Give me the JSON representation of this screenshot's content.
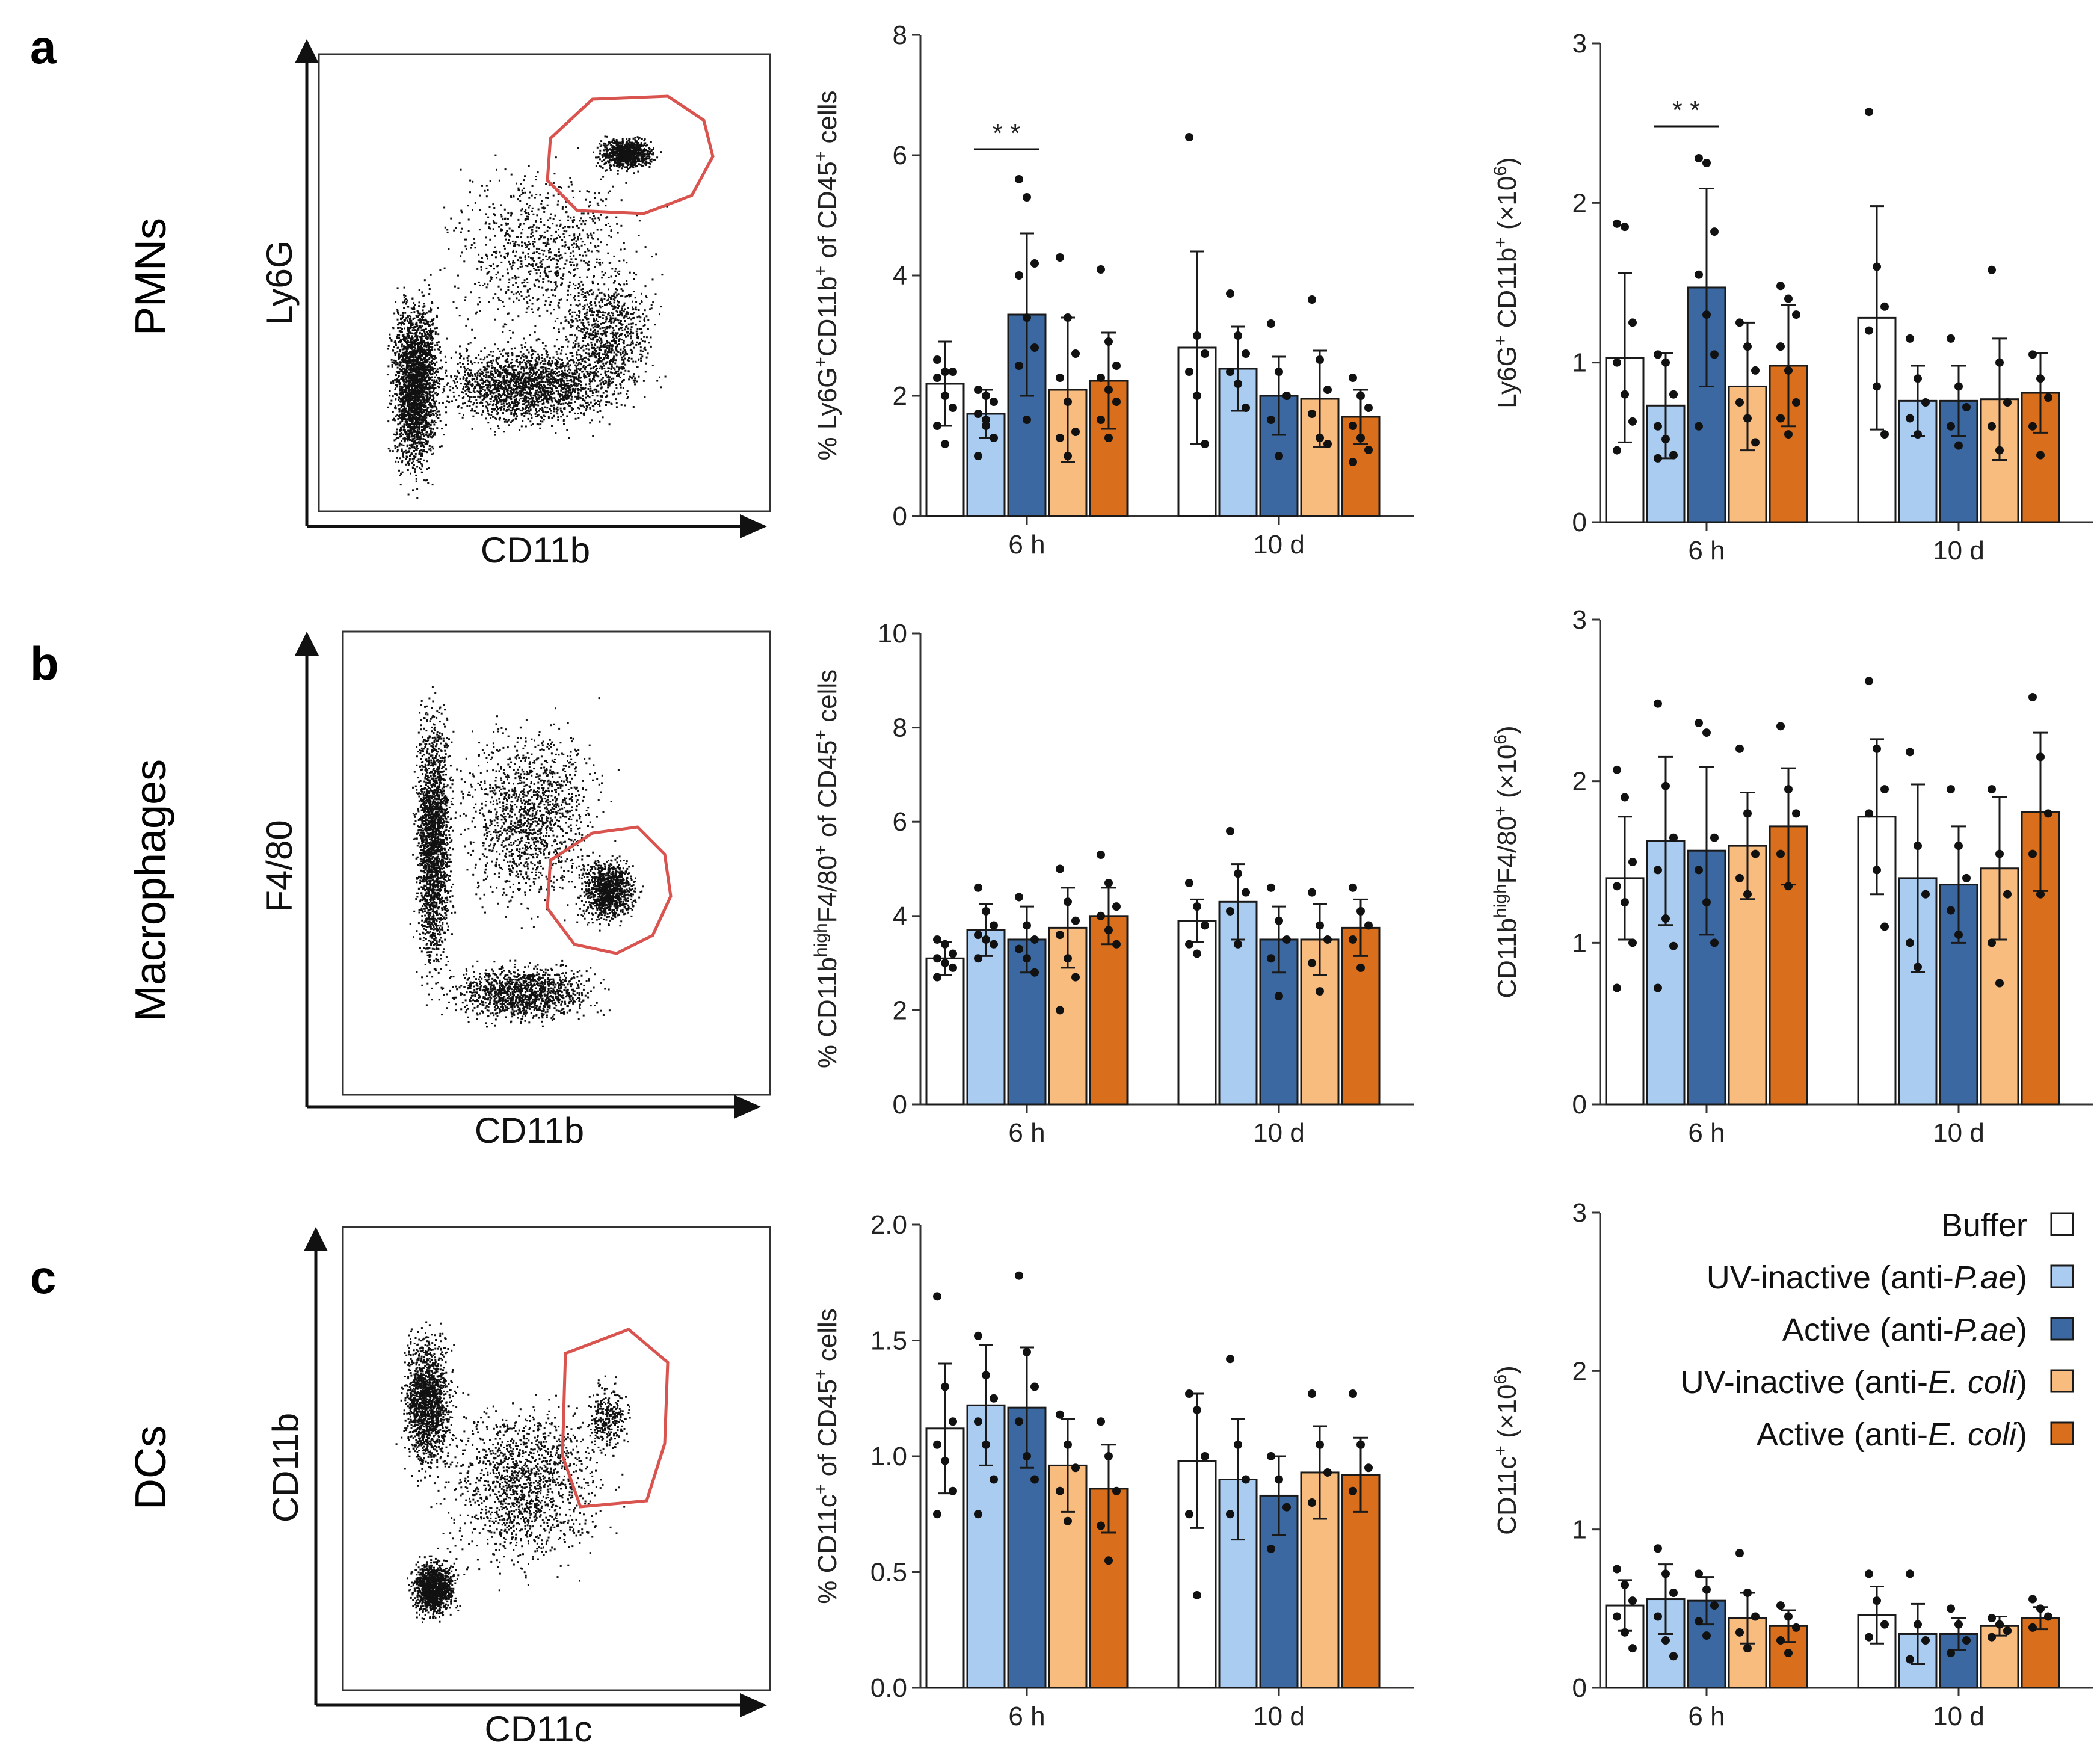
{
  "panels": {
    "a": {
      "letter": "a",
      "row_label": "PMNs",
      "flow_y": "Ly6G",
      "flow_x": "CD11b"
    },
    "b": {
      "letter": "b",
      "row_label": "Macrophages",
      "flow_y": "F4/80",
      "flow_x": "CD11b"
    },
    "c": {
      "letter": "c",
      "row_label": "DCs",
      "flow_y": "CD11b",
      "flow_x": "CD11c"
    }
  },
  "groups": [
    {
      "name": "Buffer",
      "color": "#ffffff"
    },
    {
      "name": "UV-inactive (anti-P.ae)",
      "color": "#a9ccf0"
    },
    {
      "name": "Active (anti-P.ae)",
      "color": "#3b68a0"
    },
    {
      "name": "UV-inactive (anti-E. coli)",
      "color": "#f8bc7f"
    },
    {
      "name": "Active (anti-E. coli)",
      "color": "#d96f1c"
    }
  ],
  "legend": {
    "entries": [
      {
        "prefix": "Buffer",
        "italic": "",
        "suffix": ""
      },
      {
        "prefix": "UV-inactive (anti-",
        "italic": "P.ae",
        "suffix": ")"
      },
      {
        "prefix": "Active (anti-",
        "italic": "P.ae",
        "suffix": ")"
      },
      {
        "prefix": "UV-inactive (anti-",
        "italic": "E. coli",
        "suffix": ")"
      },
      {
        "prefix": "Active (anti-",
        "italic": "E. coli",
        "suffix": ")"
      }
    ]
  },
  "chart_data": [
    {
      "id": "pmn_pct",
      "type": "bar",
      "ylabel_parts": [
        [
          "% Ly6G",
          ""
        ],
        [
          "+",
          "sup"
        ],
        [
          "CD11b",
          ""
        ],
        [
          "+",
          "sup"
        ],
        [
          " of CD45",
          ""
        ],
        [
          "+",
          "sup"
        ],
        [
          " cells",
          ""
        ]
      ],
      "ylim": [
        0,
        8
      ],
      "ytick_step": 2,
      "ytick_labels": [
        "0",
        "2",
        "4",
        "6",
        "8"
      ],
      "timepoints": [
        "6 h",
        "10 d"
      ],
      "means": [
        [
          2.2,
          1.7,
          3.35,
          2.1,
          2.25
        ],
        [
          2.8,
          2.45,
          2.0,
          1.95,
          1.65
        ]
      ],
      "sd": [
        [
          0.7,
          0.4,
          1.35,
          1.2,
          0.8
        ],
        [
          1.6,
          0.7,
          0.65,
          0.8,
          0.45
        ]
      ],
      "points": [
        [
          [
            2.6,
            2.4,
            2.4,
            2.3,
            2.0,
            1.8,
            1.5,
            1.2
          ],
          [
            2.1,
            2.0,
            1.9,
            1.7,
            1.5,
            1.3,
            1.0,
            1.6
          ],
          [
            5.6,
            5.3,
            4.2,
            4.0,
            3.3,
            2.8,
            2.5,
            1.6
          ],
          [
            4.3,
            3.3,
            2.7,
            2.3,
            1.9,
            1.4,
            1.3,
            1.0
          ],
          [
            4.1,
            2.9,
            2.5,
            2.3,
            2.1,
            1.9,
            1.6,
            1.3
          ]
        ],
        [
          [
            6.3,
            3.0,
            2.7,
            2.4,
            2.0,
            1.2
          ],
          [
            3.7,
            3.0,
            2.7,
            2.4,
            2.2,
            1.8
          ],
          [
            3.2,
            2.4,
            2.0,
            1.6,
            1.0,
            2.0
          ],
          [
            3.6,
            2.6,
            2.1,
            1.7,
            1.3,
            1.2
          ],
          [
            2.3,
            2.0,
            1.8,
            1.5,
            1.3,
            1.1,
            0.9
          ]
        ]
      ],
      "significance": {
        "label": "* *",
        "timepoint": 0,
        "from_group": 1,
        "to_group": 2,
        "y": 6.1
      }
    },
    {
      "id": "pmn_abs",
      "type": "bar",
      "ylabel_parts": [
        [
          "Ly6G",
          ""
        ],
        [
          "+",
          "sup"
        ],
        [
          " CD11b",
          ""
        ],
        [
          "+",
          "sup"
        ],
        [
          " (×10",
          ""
        ],
        [
          "6",
          "sup"
        ],
        [
          ")",
          ""
        ]
      ],
      "ylim": [
        0,
        3
      ],
      "ytick_step": 1,
      "ytick_labels": [
        "0",
        "1",
        "2",
        "3"
      ],
      "timepoints": [
        "6 h",
        "10 d"
      ],
      "means": [
        [
          1.03,
          0.73,
          1.47,
          0.85,
          0.98
        ],
        [
          1.28,
          0.76,
          0.76,
          0.77,
          0.81
        ]
      ],
      "sd": [
        [
          0.53,
          0.33,
          0.62,
          0.4,
          0.38
        ],
        [
          0.7,
          0.22,
          0.22,
          0.38,
          0.25
        ]
      ],
      "points": [
        [
          [
            1.87,
            1.85,
            1.25,
            1.0,
            0.8,
            0.63,
            0.45
          ],
          [
            1.05,
            1.0,
            0.8,
            0.6,
            0.52,
            0.42,
            0.4
          ],
          [
            2.28,
            2.25,
            1.82,
            1.55,
            1.3,
            1.05,
            0.6
          ],
          [
            1.25,
            1.1,
            0.95,
            0.75,
            0.65,
            0.5
          ],
          [
            1.48,
            1.4,
            1.3,
            1.1,
            0.95,
            0.75,
            0.65,
            0.55
          ]
        ],
        [
          [
            2.57,
            1.6,
            1.35,
            1.2,
            0.85,
            0.55
          ],
          [
            1.15,
            0.9,
            0.75,
            0.65,
            0.55
          ],
          [
            1.15,
            0.85,
            0.72,
            0.6,
            0.48
          ],
          [
            1.58,
            1.0,
            0.75,
            0.6,
            0.45
          ],
          [
            1.05,
            0.9,
            0.78,
            0.6,
            0.42
          ]
        ]
      ],
      "significance": {
        "label": "* *",
        "timepoint": 0,
        "from_group": 1,
        "to_group": 2,
        "y": 2.48
      }
    },
    {
      "id": "mac_pct",
      "type": "bar",
      "ylabel_parts": [
        [
          "% CD11b",
          ""
        ],
        [
          "high",
          "sup"
        ],
        [
          "F4/80",
          ""
        ],
        [
          "+",
          "sup"
        ],
        [
          " of CD45",
          ""
        ],
        [
          "+",
          "sup"
        ],
        [
          " cells",
          ""
        ]
      ],
      "ylim": [
        0,
        10
      ],
      "ytick_step": 2,
      "ytick_labels": [
        "0",
        "2",
        "4",
        "6",
        "8",
        "10"
      ],
      "timepoints": [
        "6 h",
        "10 d"
      ],
      "means": [
        [
          3.1,
          3.7,
          3.5,
          3.75,
          4.0
        ],
        [
          3.9,
          4.3,
          3.5,
          3.5,
          3.75
        ]
      ],
      "sd": [
        [
          0.35,
          0.55,
          0.7,
          0.85,
          0.6
        ],
        [
          0.45,
          0.8,
          0.7,
          0.75,
          0.6
        ]
      ],
      "points": [
        [
          [
            3.5,
            3.4,
            3.2,
            3.1,
            3.0,
            2.9,
            2.7
          ],
          [
            4.6,
            4.1,
            3.8,
            3.6,
            3.5,
            3.4,
            3.1
          ],
          [
            4.4,
            3.8,
            3.5,
            3.3,
            3.1,
            2.8
          ],
          [
            5.0,
            4.3,
            3.9,
            3.6,
            3.1,
            2.7,
            2.0
          ],
          [
            5.3,
            4.7,
            4.2,
            4.0,
            3.7,
            3.4
          ]
        ],
        [
          [
            4.7,
            4.2,
            3.8,
            3.4,
            3.2
          ],
          [
            5.8,
            4.9,
            4.5,
            4.1,
            3.4
          ],
          [
            4.6,
            3.9,
            3.5,
            3.1,
            2.3
          ],
          [
            4.5,
            3.8,
            3.5,
            3.0,
            2.4
          ],
          [
            4.6,
            4.1,
            3.8,
            3.5,
            2.9
          ]
        ]
      ]
    },
    {
      "id": "mac_abs",
      "type": "bar",
      "ylabel_parts": [
        [
          "CD11b",
          ""
        ],
        [
          "high",
          "sup"
        ],
        [
          "F4/80",
          ""
        ],
        [
          "+",
          "sup"
        ],
        [
          " (×10",
          ""
        ],
        [
          "6",
          "sup"
        ],
        [
          ")",
          ""
        ]
      ],
      "ylim": [
        0,
        3
      ],
      "ytick_step": 1,
      "ytick_labels": [
        "0",
        "1",
        "2",
        "3"
      ],
      "timepoints": [
        "6 h",
        "10 d"
      ],
      "means": [
        [
          1.4,
          1.63,
          1.57,
          1.6,
          1.72
        ],
        [
          1.78,
          1.4,
          1.36,
          1.46,
          1.81
        ]
      ],
      "sd": [
        [
          0.38,
          0.52,
          0.52,
          0.33,
          0.36
        ],
        [
          0.48,
          0.58,
          0.36,
          0.44,
          0.49
        ]
      ],
      "points": [
        [
          [
            2.07,
            1.9,
            1.5,
            1.35,
            1.25,
            1.0,
            0.72
          ],
          [
            2.48,
            1.97,
            1.65,
            1.45,
            1.15,
            0.98,
            0.72
          ],
          [
            2.36,
            2.3,
            1.65,
            1.45,
            1.25,
            1.0
          ],
          [
            2.2,
            1.8,
            1.55,
            1.4,
            1.3
          ],
          [
            2.34,
            1.95,
            1.8,
            1.55,
            1.35
          ]
        ],
        [
          [
            2.62,
            2.2,
            1.95,
            1.8,
            1.45,
            1.1
          ],
          [
            2.18,
            1.6,
            1.3,
            1.0,
            0.85
          ],
          [
            1.95,
            1.6,
            1.4,
            1.2,
            1.05
          ],
          [
            1.95,
            1.55,
            1.3,
            1.0,
            0.75
          ],
          [
            2.52,
            2.15,
            1.8,
            1.55,
            1.3
          ]
        ]
      ]
    },
    {
      "id": "dc_pct",
      "type": "bar",
      "ylabel_parts": [
        [
          "% CD11c",
          ""
        ],
        [
          "+",
          "sup"
        ],
        [
          " of CD45",
          ""
        ],
        [
          "+",
          "sup"
        ],
        [
          " cells",
          ""
        ]
      ],
      "ylim": [
        0,
        2
      ],
      "ytick_step": 0.5,
      "ytick_labels": [
        "0.0",
        "0.5",
        "1.0",
        "1.5",
        "2.0"
      ],
      "timepoints": [
        "6 h",
        "10 d"
      ],
      "means": [
        [
          1.12,
          1.22,
          1.21,
          0.96,
          0.86
        ],
        [
          0.98,
          0.9,
          0.83,
          0.93,
          0.92
        ]
      ],
      "sd": [
        [
          0.28,
          0.26,
          0.26,
          0.2,
          0.19
        ],
        [
          0.29,
          0.26,
          0.17,
          0.2,
          0.16
        ]
      ],
      "points": [
        [
          [
            1.69,
            1.3,
            1.15,
            1.05,
            0.98,
            0.85,
            0.75
          ],
          [
            1.52,
            1.35,
            1.25,
            1.15,
            1.05,
            0.9,
            0.75
          ],
          [
            1.78,
            1.45,
            1.3,
            1.15,
            1.0,
            0.9
          ],
          [
            1.18,
            1.05,
            0.95,
            0.85,
            0.72
          ],
          [
            1.15,
            1.0,
            0.85,
            0.7,
            0.55
          ]
        ],
        [
          [
            1.27,
            1.2,
            1.0,
            0.75,
            0.4
          ],
          [
            1.42,
            1.05,
            0.9,
            0.75
          ],
          [
            1.0,
            0.9,
            0.78,
            0.6
          ],
          [
            1.27,
            1.05,
            0.93,
            0.8
          ],
          [
            1.27,
            1.05,
            0.95,
            0.85
          ]
        ]
      ]
    },
    {
      "id": "dc_abs",
      "type": "bar",
      "ylabel_parts": [
        [
          "CD11c",
          ""
        ],
        [
          "+",
          "sup"
        ],
        [
          " (×10",
          ""
        ],
        [
          "6",
          "sup"
        ],
        [
          ")",
          ""
        ]
      ],
      "ylim": [
        0,
        3
      ],
      "ytick_step": 1,
      "ytick_labels": [
        "0",
        "1",
        "2",
        "3"
      ],
      "timepoints": [
        "6 h",
        "10 d"
      ],
      "means": [
        [
          0.52,
          0.56,
          0.55,
          0.44,
          0.39
        ],
        [
          0.46,
          0.34,
          0.34,
          0.39,
          0.44
        ]
      ],
      "sd": [
        [
          0.16,
          0.22,
          0.15,
          0.16,
          0.1
        ],
        [
          0.18,
          0.19,
          0.1,
          0.06,
          0.07
        ]
      ],
      "points": [
        [
          [
            0.75,
            0.65,
            0.55,
            0.45,
            0.35,
            0.25
          ],
          [
            0.88,
            0.72,
            0.6,
            0.45,
            0.3,
            0.2
          ],
          [
            0.72,
            0.62,
            0.52,
            0.42,
            0.33
          ],
          [
            0.85,
            0.6,
            0.45,
            0.35,
            0.25
          ],
          [
            0.52,
            0.45,
            0.38,
            0.3,
            0.22
          ]
        ],
        [
          [
            0.72,
            0.55,
            0.4,
            0.32
          ],
          [
            0.72,
            0.4,
            0.3,
            0.18
          ],
          [
            0.5,
            0.4,
            0.3,
            0.22
          ],
          [
            0.44,
            0.4,
            0.36,
            0.32
          ],
          [
            0.56,
            0.5,
            0.45,
            0.38
          ]
        ]
      ]
    }
  ]
}
